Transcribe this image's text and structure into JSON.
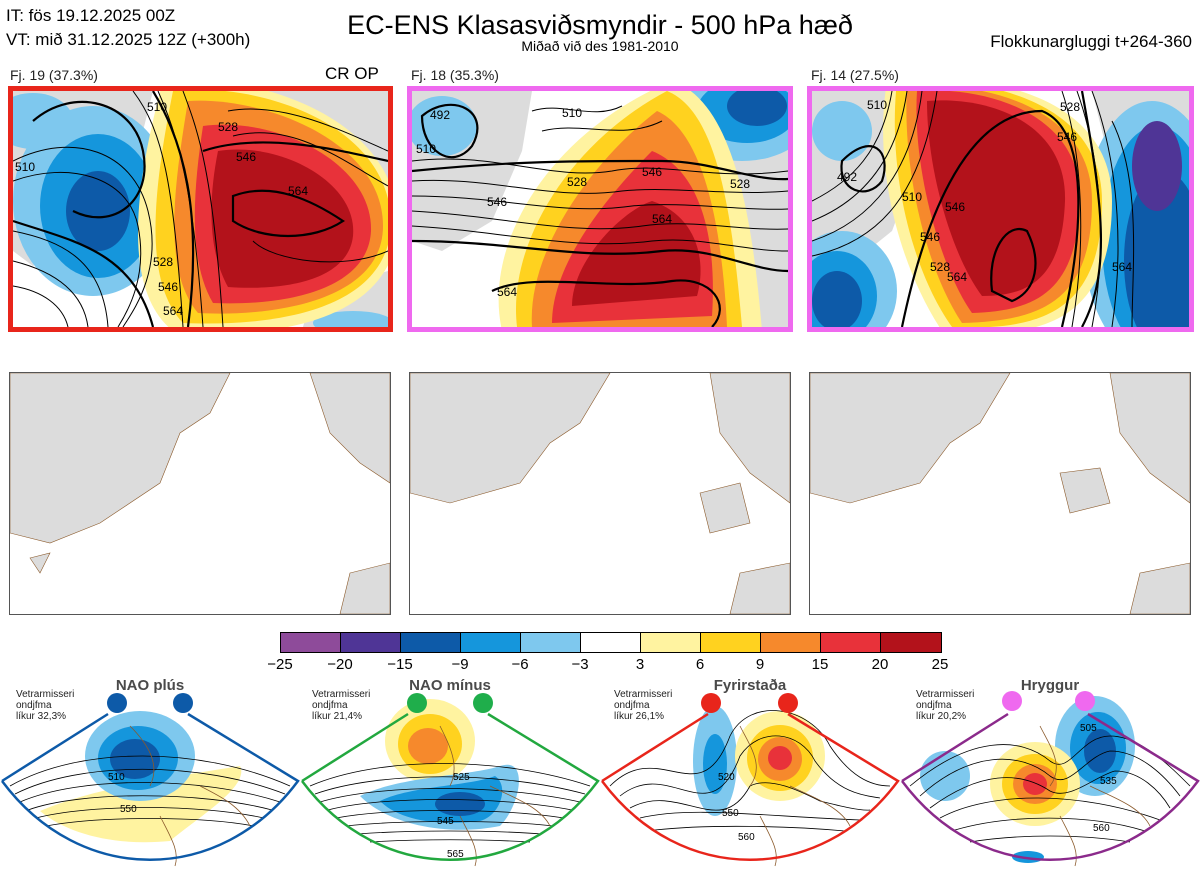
{
  "header": {
    "init_time": "IT: fös 19.12.2025 00Z",
    "valid_time": "VT: mið 31.12.2025 12Z  (+300h)",
    "title": "EC-ENS Klasasviðsmyndir - 500 hPa hæð",
    "subtitle": "Miðað við des 1981-2010",
    "window": "Flokkunargluggi t+264-360"
  },
  "clusters": [
    {
      "label": "Fj. 19 (37.3%)",
      "tag": "CR OP",
      "border_color": "#e8251b",
      "contours": [
        "510",
        "528",
        "546",
        "564",
        "510",
        "528",
        "546",
        "564"
      ]
    },
    {
      "label": "Fj. 18 (35.3%)",
      "tag": "",
      "border_color": "#ef69ef",
      "contours": [
        "492",
        "510",
        "510",
        "528",
        "546",
        "528",
        "546",
        "564",
        "564"
      ]
    },
    {
      "label": "Fj. 14 (27.5%)",
      "tag": "",
      "border_color": "#ef69ef",
      "contours": [
        "510",
        "528",
        "546",
        "564",
        "492",
        "510",
        "546",
        "528",
        "546",
        "564"
      ]
    }
  ],
  "colorbar": {
    "colors": [
      "#8e4b9a",
      "#4f3596",
      "#0d5aa8",
      "#1596dc",
      "#7ec8ee",
      "#ffffff",
      "#fff3a0",
      "#ffd21f",
      "#f6892c",
      "#e8323a",
      "#b3121b"
    ],
    "ticks": [
      "−25",
      "−20",
      "−15",
      "−9",
      "−6",
      "−3",
      "3",
      "6",
      "9",
      "15",
      "20",
      "25"
    ]
  },
  "regimes": [
    {
      "name": "NAO plús",
      "note_1": "Vetrarmisseri",
      "note_2": "ondjfma",
      "note_3": "líkur 32,3%",
      "color": "#0d5aa8",
      "dot_color": "#0d5aa8",
      "contours": [
        "510",
        "550"
      ]
    },
    {
      "name": "NAO mínus",
      "note_1": "Vetrarmisseri",
      "note_2": "ondjfma",
      "note_3": "líkur 21,4%",
      "color": "#22a83f",
      "dot_color": "#1fae4b",
      "contours": [
        "525",
        "545",
        "565"
      ]
    },
    {
      "name": "Fyrirstaða",
      "note_1": "Vetrarmisseri",
      "note_2": "ondjfma",
      "note_3": "líkur 26,1%",
      "color": "#e8251b",
      "dot_color": "#e8251b",
      "contours": [
        "520",
        "550",
        "560"
      ]
    },
    {
      "name": "Hryggur",
      "note_1": "Vetrarmisseri",
      "note_2": "ondjfma",
      "note_3": "líkur 20,2%",
      "color": "#8b2a8b",
      "dot_color": "#ef69ef",
      "contours": [
        "505",
        "535",
        "560"
      ]
    }
  ]
}
